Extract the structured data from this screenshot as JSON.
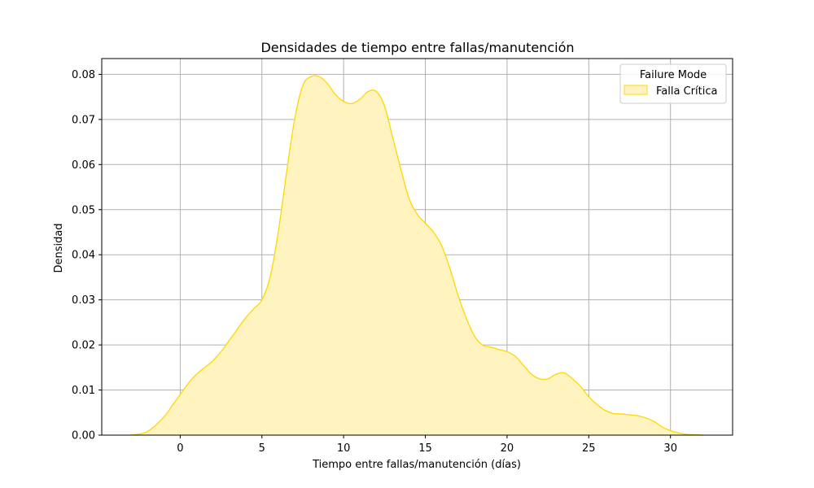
{
  "chart_data": {
    "type": "area",
    "title": "Densidades de tiempo entre fallas/manutención",
    "xlabel": "Tiempo entre fallas/manutención (días)",
    "ylabel": "Densidad",
    "xlim": [
      -4.8,
      33.8
    ],
    "ylim": [
      0,
      0.0835
    ],
    "xticks": [
      0,
      5,
      10,
      15,
      20,
      25,
      30
    ],
    "yticks": [
      0.0,
      0.01,
      0.02,
      0.03,
      0.04,
      0.05,
      0.06,
      0.07,
      0.08
    ],
    "ytick_labels": [
      "0.00",
      "0.01",
      "0.02",
      "0.03",
      "0.04",
      "0.05",
      "0.06",
      "0.07",
      "0.08"
    ],
    "grid": true,
    "legend": {
      "title": "Failure Mode",
      "placement": "top-right"
    },
    "series": [
      {
        "name": "Falla Crítica",
        "line_color": "#FFD700",
        "fill_color": "#FFF3BF",
        "x": [
          -3.0,
          -2.0,
          -1.0,
          -0.5,
          0.0,
          0.5,
          1.0,
          1.5,
          2.0,
          2.5,
          3.0,
          3.5,
          4.0,
          4.5,
          5.0,
          5.5,
          6.0,
          6.5,
          7.0,
          7.5,
          8.0,
          8.5,
          9.0,
          9.5,
          10.0,
          10.5,
          11.0,
          11.5,
          12.0,
          12.5,
          13.0,
          13.5,
          14.0,
          14.5,
          15.0,
          15.5,
          16.0,
          16.5,
          17.0,
          17.5,
          18.0,
          18.5,
          19.0,
          19.5,
          20.0,
          20.5,
          21.0,
          21.5,
          22.0,
          22.5,
          23.0,
          23.5,
          24.0,
          24.5,
          25.0,
          25.5,
          26.0,
          26.5,
          27.0,
          27.5,
          28.0,
          28.5,
          29.0,
          29.5,
          30.0,
          30.5,
          31.0,
          32.0
        ],
        "y": [
          0.0,
          0.0008,
          0.004,
          0.0065,
          0.009,
          0.0115,
          0.0135,
          0.015,
          0.0165,
          0.0185,
          0.021,
          0.0235,
          0.026,
          0.028,
          0.03,
          0.035,
          0.045,
          0.058,
          0.07,
          0.0775,
          0.0795,
          0.0795,
          0.078,
          0.0755,
          0.074,
          0.0735,
          0.0745,
          0.0762,
          0.0762,
          0.073,
          0.066,
          0.059,
          0.0525,
          0.049,
          0.047,
          0.045,
          0.042,
          0.037,
          0.031,
          0.026,
          0.022,
          0.02,
          0.0195,
          0.019,
          0.0185,
          0.0175,
          0.0155,
          0.0135,
          0.0125,
          0.0125,
          0.0135,
          0.0138,
          0.0125,
          0.0108,
          0.0085,
          0.0068,
          0.0055,
          0.0048,
          0.0047,
          0.0045,
          0.0043,
          0.0038,
          0.003,
          0.0018,
          0.001,
          0.0005,
          0.0002,
          0.0
        ]
      }
    ]
  }
}
